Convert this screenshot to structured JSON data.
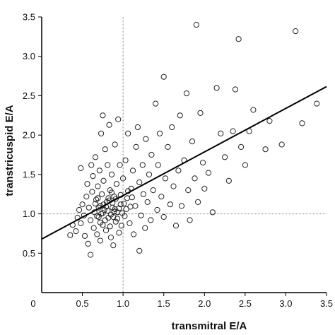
{
  "chart_data": {
    "type": "scatter",
    "title": "",
    "xlabel": "transmitral E/A",
    "ylabel": "transtricuspid E/A",
    "xlim": [
      0,
      3.5
    ],
    "ylim": [
      0,
      3.5
    ],
    "xticks": [
      0.5,
      1.0,
      1.5,
      2.0,
      2.5,
      3.0,
      3.5
    ],
    "xtick_labels": [
      "0.5",
      "1.0",
      "1.5",
      "2.0",
      "2.5",
      "3.0",
      "3.5"
    ],
    "yticks": [
      0.5,
      1.0,
      1.5,
      2.0,
      2.5,
      3.0,
      3.5
    ],
    "ytick_labels": [
      "0.5",
      "1.0",
      "1.5",
      "2.0",
      "2.5",
      "3.0",
      "3.5"
    ],
    "origin_label": "0",
    "reference_lines": {
      "x": 1.0,
      "y": 1.0,
      "style": "dotted"
    },
    "regression_line": {
      "intercept": 0.68,
      "slope": 0.553
    },
    "marker": "open-circle",
    "grid": false,
    "legend": "none",
    "series": [
      {
        "points": [
          [
            0.35,
            0.73
          ],
          [
            0.38,
            0.86
          ],
          [
            0.42,
            0.78
          ],
          [
            0.44,
            0.95
          ],
          [
            0.46,
            1.05
          ],
          [
            0.48,
            0.88
          ],
          [
            0.48,
            1.58
          ],
          [
            0.5,
            1.12
          ],
          [
            0.52,
            0.98
          ],
          [
            0.53,
            0.72
          ],
          [
            0.55,
            1.22
          ],
          [
            0.56,
            1.38
          ],
          [
            0.57,
            0.62
          ],
          [
            0.58,
            1.08
          ],
          [
            0.6,
            0.48
          ],
          [
            0.6,
            0.92
          ],
          [
            0.61,
            1.62
          ],
          [
            0.62,
            1.28
          ],
          [
            0.63,
            1.48
          ],
          [
            0.64,
            0.82
          ],
          [
            0.65,
            1.02
          ],
          [
            0.66,
            1.72
          ],
          [
            0.67,
            1.18
          ],
          [
            0.68,
            0.74
          ],
          [
            0.69,
            1.35
          ],
          [
            0.7,
            0.96
          ],
          [
            0.71,
            1.55
          ],
          [
            0.72,
            1.1
          ],
          [
            0.72,
            0.66
          ],
          [
            0.73,
            2.02
          ],
          [
            0.74,
            1.25
          ],
          [
            0.75,
            2.25
          ],
          [
            0.75,
            0.86
          ],
          [
            0.76,
            1.42
          ],
          [
            0.77,
            1.05
          ],
          [
            0.78,
            1.82
          ],
          [
            0.79,
            0.79
          ],
          [
            0.8,
            1.15
          ],
          [
            0.81,
            1.62
          ],
          [
            0.82,
            0.95
          ],
          [
            0.83,
            2.13
          ],
          [
            0.84,
            1.3
          ],
          [
            0.85,
            0.7
          ],
          [
            0.86,
            1.5
          ],
          [
            0.87,
            1.08
          ],
          [
            0.88,
            0.6
          ],
          [
            0.89,
            1.22
          ],
          [
            0.9,
            1.88
          ],
          [
            0.91,
            0.9
          ],
          [
            0.92,
            1.38
          ],
          [
            0.93,
            1.02
          ],
          [
            0.94,
            2.2
          ],
          [
            0.95,
            0.76
          ],
          [
            0.96,
            1.62
          ],
          [
            0.97,
            1.12
          ],
          [
            0.98,
            0.85
          ],
          [
            1.0,
            1.45
          ],
          [
            1.02,
            0.97
          ],
          [
            1.03,
            1.68
          ],
          [
            1.05,
            1.2
          ],
          [
            1.06,
            2.02
          ],
          [
            1.08,
            0.88
          ],
          [
            1.1,
            1.32
          ],
          [
            1.12,
            1.55
          ],
          [
            1.13,
            0.74
          ],
          [
            1.15,
            1.1
          ],
          [
            1.16,
            1.85
          ],
          [
            1.18,
            2.1
          ],
          [
            1.2,
            0.53
          ],
          [
            1.2,
            1.4
          ],
          [
            1.22,
            0.98
          ],
          [
            1.24,
            1.62
          ],
          [
            1.25,
            1.25
          ],
          [
            1.27,
            0.82
          ],
          [
            1.28,
            1.95
          ],
          [
            1.3,
            1.15
          ],
          [
            1.32,
            1.5
          ],
          [
            1.34,
            0.92
          ],
          [
            1.35,
            1.75
          ],
          [
            1.37,
            1.3
          ],
          [
            1.4,
            2.4
          ],
          [
            1.42,
            1.05
          ],
          [
            1.43,
            1.62
          ],
          [
            1.45,
            2.02
          ],
          [
            1.47,
            1.22
          ],
          [
            1.5,
            2.74
          ],
          [
            1.5,
            0.96
          ],
          [
            1.52,
            1.45
          ],
          [
            1.55,
            1.85
          ],
          [
            1.58,
            1.12
          ],
          [
            1.6,
            2.1
          ],
          [
            1.62,
            1.35
          ],
          [
            1.65,
            0.85
          ],
          [
            1.68,
            1.55
          ],
          [
            1.7,
            2.25
          ],
          [
            1.72,
            1.1
          ],
          [
            1.75,
            1.68
          ],
          [
            1.78,
            2.53
          ],
          [
            1.8,
            1.3
          ],
          [
            1.82,
            0.92
          ],
          [
            1.85,
            1.92
          ],
          [
            1.88,
            1.45
          ],
          [
            1.9,
            3.4
          ],
          [
            1.92,
            1.15
          ],
          [
            1.95,
            2.28
          ],
          [
            1.98,
            1.65
          ],
          [
            2.0,
            1.32
          ],
          [
            2.05,
            1.52
          ],
          [
            2.1,
            1.02
          ],
          [
            2.15,
            2.6
          ],
          [
            2.2,
            2.02
          ],
          [
            2.25,
            1.72
          ],
          [
            2.3,
            1.42
          ],
          [
            2.35,
            2.05
          ],
          [
            2.38,
            2.58
          ],
          [
            2.42,
            3.22
          ],
          [
            2.45,
            1.85
          ],
          [
            2.5,
            1.62
          ],
          [
            2.55,
            2.05
          ],
          [
            2.6,
            2.32
          ],
          [
            2.75,
            1.82
          ],
          [
            2.8,
            2.18
          ],
          [
            2.95,
            1.88
          ],
          [
            3.12,
            3.32
          ],
          [
            3.2,
            2.15
          ],
          [
            3.38,
            2.4
          ],
          [
            0.68,
            0.97
          ],
          [
            0.7,
            1.08
          ],
          [
            0.73,
            1.0
          ],
          [
            0.76,
            1.12
          ],
          [
            0.78,
            0.92
          ],
          [
            0.81,
            1.04
          ],
          [
            0.83,
            1.17
          ],
          [
            0.85,
            0.99
          ],
          [
            0.87,
            1.14
          ],
          [
            0.89,
            1.03
          ],
          [
            0.91,
            1.19
          ],
          [
            0.93,
            0.94
          ],
          [
            0.95,
            1.07
          ],
          [
            0.97,
            1.24
          ],
          [
            0.99,
            1.01
          ],
          [
            1.01,
            1.13
          ],
          [
            1.04,
            1.06
          ],
          [
            1.06,
            1.29
          ],
          [
            1.09,
            1.09
          ],
          [
            1.11,
            1.21
          ],
          [
            0.66,
            1.13
          ],
          [
            0.69,
            1.2
          ],
          [
            0.72,
            0.89
          ],
          [
            0.75,
            1.01
          ],
          [
            0.79,
            1.09
          ],
          [
            0.82,
            1.2
          ],
          [
            0.84,
            0.84
          ],
          [
            0.86,
            1.27
          ],
          [
            0.88,
            0.96
          ],
          [
            0.9,
            1.06
          ]
        ]
      }
    ]
  }
}
